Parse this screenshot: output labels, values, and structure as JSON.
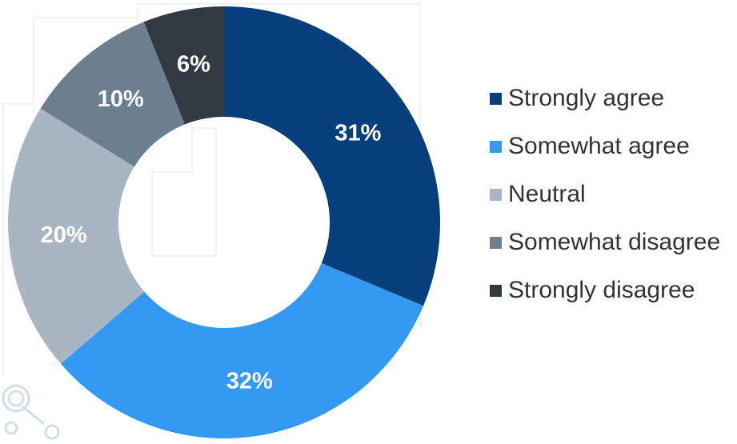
{
  "chart_data": {
    "type": "pie",
    "style": "donut",
    "categories": [
      "Strongly agree",
      "Somewhat agree",
      "Neutral",
      "Somewhat disagree",
      "Strongly disagree"
    ],
    "values": [
      31,
      32,
      20,
      10,
      6
    ],
    "labels": [
      "31%",
      "32%",
      "20%",
      "10%",
      "6%"
    ],
    "colors": [
      "#073f7c",
      "#3399f3",
      "#a9b6c1",
      "#6c7f8e",
      "#313a43"
    ],
    "start_angle_deg": 0,
    "direction": "clockwise",
    "legend_position": "right"
  }
}
